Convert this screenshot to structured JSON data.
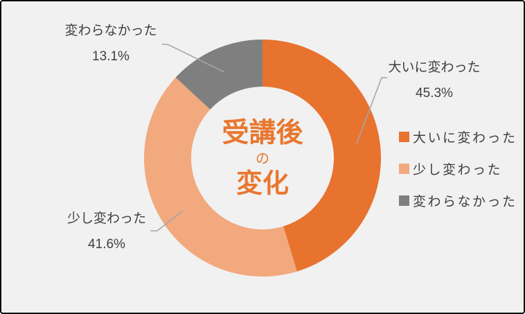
{
  "chart_data": {
    "type": "pie",
    "subtype": "donut",
    "title": "受講後の変化",
    "categories": [
      "大いに変わった",
      "少し変わった",
      "変わらなかった"
    ],
    "values": [
      45.3,
      41.6,
      13.1
    ],
    "unit": "%",
    "colors": [
      "#E8732F",
      "#F2A97E",
      "#7F7F7F"
    ],
    "start_angle_deg": 0,
    "direction": "clockwise",
    "hole_radius_ratio": 0.6,
    "legend_position": "right",
    "legend": [
      "大いに変わった",
      "少し変わった",
      "変わらなかった"
    ],
    "center_text": {
      "line1": "受講後",
      "line2": "の",
      "line3": "変化"
    }
  },
  "callouts": [
    {
      "label": "大いに変わった",
      "value": "45.3%"
    },
    {
      "label": "少し変わった",
      "value": "41.6%"
    },
    {
      "label": "変わらなかった",
      "value": "13.1%"
    }
  ],
  "colors": {
    "background": "#F1F1F1",
    "leader_line": "#A6A6A6",
    "label_text": "#404040",
    "title_text": "#E8772F"
  }
}
